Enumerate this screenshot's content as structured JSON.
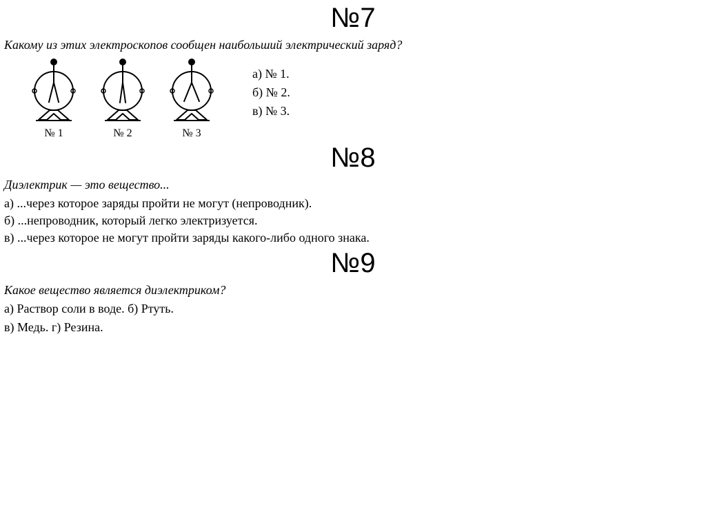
{
  "q7": {
    "heading": "№7",
    "question": "Какому из этих электроскопов сообщен наибольший электрический заряд?",
    "electroscopes": [
      {
        "label": "№ 1",
        "leaf_spread": 14
      },
      {
        "label": "№ 2",
        "leaf_spread": 8
      },
      {
        "label": "№ 3",
        "leaf_spread": 22
      }
    ],
    "answers": [
      "а) № 1.",
      "б) № 2.",
      "в) № 3."
    ],
    "style": {
      "stroke": "#000000",
      "stroke_width": 2,
      "ball_radius": 5,
      "circle_radius": 28,
      "svg_size": 96
    }
  },
  "q8": {
    "heading": "№8",
    "question": "Диэлектрик — это вещество...",
    "answers": [
      "а) ...через которое заряды пройти не могут (непроводник).",
      "б) ...непроводник, который легко электризуется.",
      "в) ...через которое не могут пройти заряды какого-либо одного знака."
    ]
  },
  "q9": {
    "heading": "№9",
    "question": "Какое вещество является диэлектриком?",
    "answers_line1": "а) Раствор соли в воде. б) Ртуть.",
    "answers_line2": "в) Медь. г) Резина."
  }
}
